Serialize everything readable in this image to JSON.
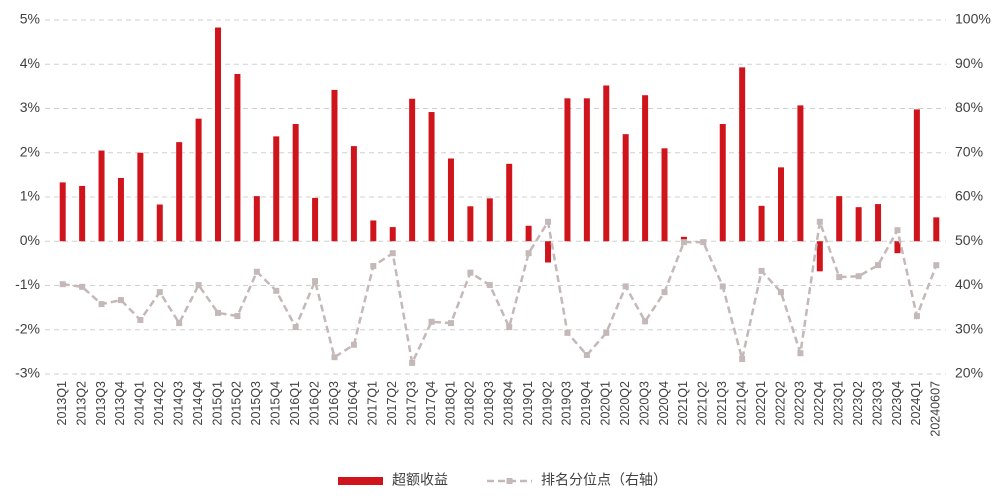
{
  "chart_data": {
    "type": "bar_line",
    "categories": [
      "2013Q1",
      "2013Q2",
      "2013Q3",
      "2013Q4",
      "2014Q1",
      "2014Q2",
      "2014Q3",
      "2014Q4",
      "2015Q1",
      "2015Q2",
      "2015Q3",
      "2015Q4",
      "2016Q1",
      "2016Q2",
      "2016Q3",
      "2016Q4",
      "2017Q1",
      "2017Q2",
      "2017Q3",
      "2017Q4",
      "2018Q1",
      "2018Q2",
      "2018Q3",
      "2018Q4",
      "2019Q1",
      "2019Q2",
      "2019Q3",
      "2019Q4",
      "2020Q1",
      "2020Q2",
      "2020Q3",
      "2020Q4",
      "2021Q1",
      "2021Q2",
      "2021Q3",
      "2021Q4",
      "2022Q1",
      "2022Q2",
      "2022Q3",
      "2022Q4",
      "2023Q1",
      "2023Q2",
      "2023Q3",
      "2023Q4",
      "2024Q1",
      "20240607"
    ],
    "series": [
      {
        "name": "超额收益",
        "type": "bar",
        "color": "#d0141b",
        "axis": "y",
        "values": [
          1.33,
          1.25,
          2.05,
          1.43,
          2.0,
          0.83,
          2.24,
          2.77,
          4.83,
          3.78,
          1.02,
          2.37,
          2.65,
          0.98,
          3.42,
          2.15,
          0.47,
          0.32,
          3.22,
          2.92,
          1.87,
          0.79,
          0.97,
          1.75,
          0.35,
          -0.48,
          3.23,
          3.23,
          3.52,
          2.42,
          3.3,
          2.1,
          0.1,
          0.04,
          2.65,
          3.93,
          0.8,
          1.67,
          3.07,
          -0.68,
          1.02,
          0.77,
          0.84,
          -0.27,
          2.98,
          0.54
        ]
      },
      {
        "name": "排名分位点（右轴）",
        "type": "line",
        "color": "#c4b8b8",
        "axis": "y2",
        "values": [
          40.3,
          39.7,
          35.8,
          36.7,
          32.2,
          38.5,
          31.5,
          40.1,
          33.8,
          33.1,
          43.1,
          38.8,
          30.6,
          41.0,
          23.8,
          26.6,
          44.4,
          47.3,
          22.5,
          31.8,
          31.5,
          42.9,
          40.1,
          30.6,
          47.3,
          54.4,
          29.3,
          24.3,
          29.3,
          39.8,
          31.9,
          38.5,
          49.8,
          49.8,
          39.8,
          23.4,
          43.3,
          38.5,
          24.7,
          54.4,
          41.9,
          42.1,
          44.6,
          52.5,
          33.1,
          44.6
        ]
      }
    ],
    "ylim": [
      -3,
      5
    ],
    "yticks": [
      {
        "value": -3,
        "label": "-3%"
      },
      {
        "value": -2,
        "label": "-2%"
      },
      {
        "value": -1,
        "label": "-1%"
      },
      {
        "value": 0,
        "label": "0%"
      },
      {
        "value": 1,
        "label": "1%"
      },
      {
        "value": 2,
        "label": "2%"
      },
      {
        "value": 3,
        "label": "3%"
      },
      {
        "value": 4,
        "label": "4%"
      },
      {
        "value": 5,
        "label": "5%"
      }
    ],
    "y2lim": [
      20,
      100
    ],
    "y2ticks": [
      {
        "value": 20,
        "label": "20%"
      },
      {
        "value": 30,
        "label": "30%"
      },
      {
        "value": 40,
        "label": "40%"
      },
      {
        "value": 50,
        "label": "50%"
      },
      {
        "value": 60,
        "label": "60%"
      },
      {
        "value": 70,
        "label": "70%"
      },
      {
        "value": 80,
        "label": "80%"
      },
      {
        "value": 90,
        "label": "90%"
      },
      {
        "value": 100,
        "label": "100%"
      }
    ],
    "grid": true,
    "legend": "bottom"
  }
}
